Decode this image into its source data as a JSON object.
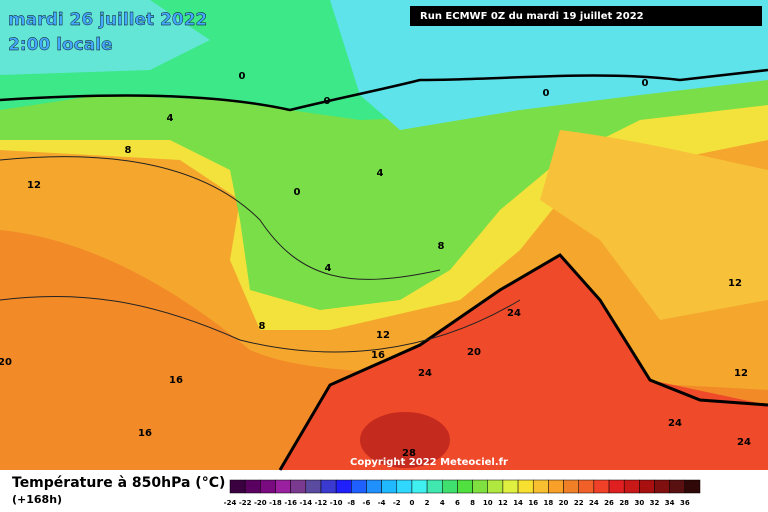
{
  "header": {
    "date": "mardi 26 juillet 2022",
    "time": "2:00 locale",
    "run": "Run ECMWF 0Z du mardi 19 juillet 2022"
  },
  "footer": {
    "title": "Température à 850hPa (°C)",
    "subtitle": "(+168h)",
    "copyright": "Copyright 2022 Meteociel.fr"
  },
  "contour_labels": [
    "0",
    "0",
    "0",
    "0",
    "0",
    "4",
    "4",
    "4",
    "8",
    "8",
    "8",
    "12",
    "12",
    "12",
    "12",
    "16",
    "16",
    "16",
    "20",
    "20",
    "24",
    "24",
    "24",
    "24",
    "28"
  ],
  "color_scale": {
    "ticks": [
      -24,
      -22,
      -20,
      -18,
      -16,
      -14,
      -12,
      -10,
      -8,
      -6,
      -4,
      -2,
      0,
      2,
      4,
      6,
      8,
      10,
      12,
      14,
      16,
      18,
      20,
      22,
      24,
      26,
      28,
      30,
      32,
      34,
      36
    ],
    "colors": [
      "#3a0040",
      "#5a0060",
      "#7a0a80",
      "#9a20a0",
      "#7a3a90",
      "#5a4aa0",
      "#3a3ad0",
      "#2020ff",
      "#2060ff",
      "#2090ff",
      "#20b8ff",
      "#30d8ff",
      "#40f0f0",
      "#40e8b0",
      "#40e070",
      "#50e040",
      "#80e040",
      "#b0e840",
      "#e0f040",
      "#f8e030",
      "#f8c030",
      "#f8a028",
      "#f08028",
      "#f06028",
      "#f04028",
      "#e02020",
      "#c81818",
      "#a81010",
      "#801010",
      "#581010",
      "#300808"
    ]
  }
}
